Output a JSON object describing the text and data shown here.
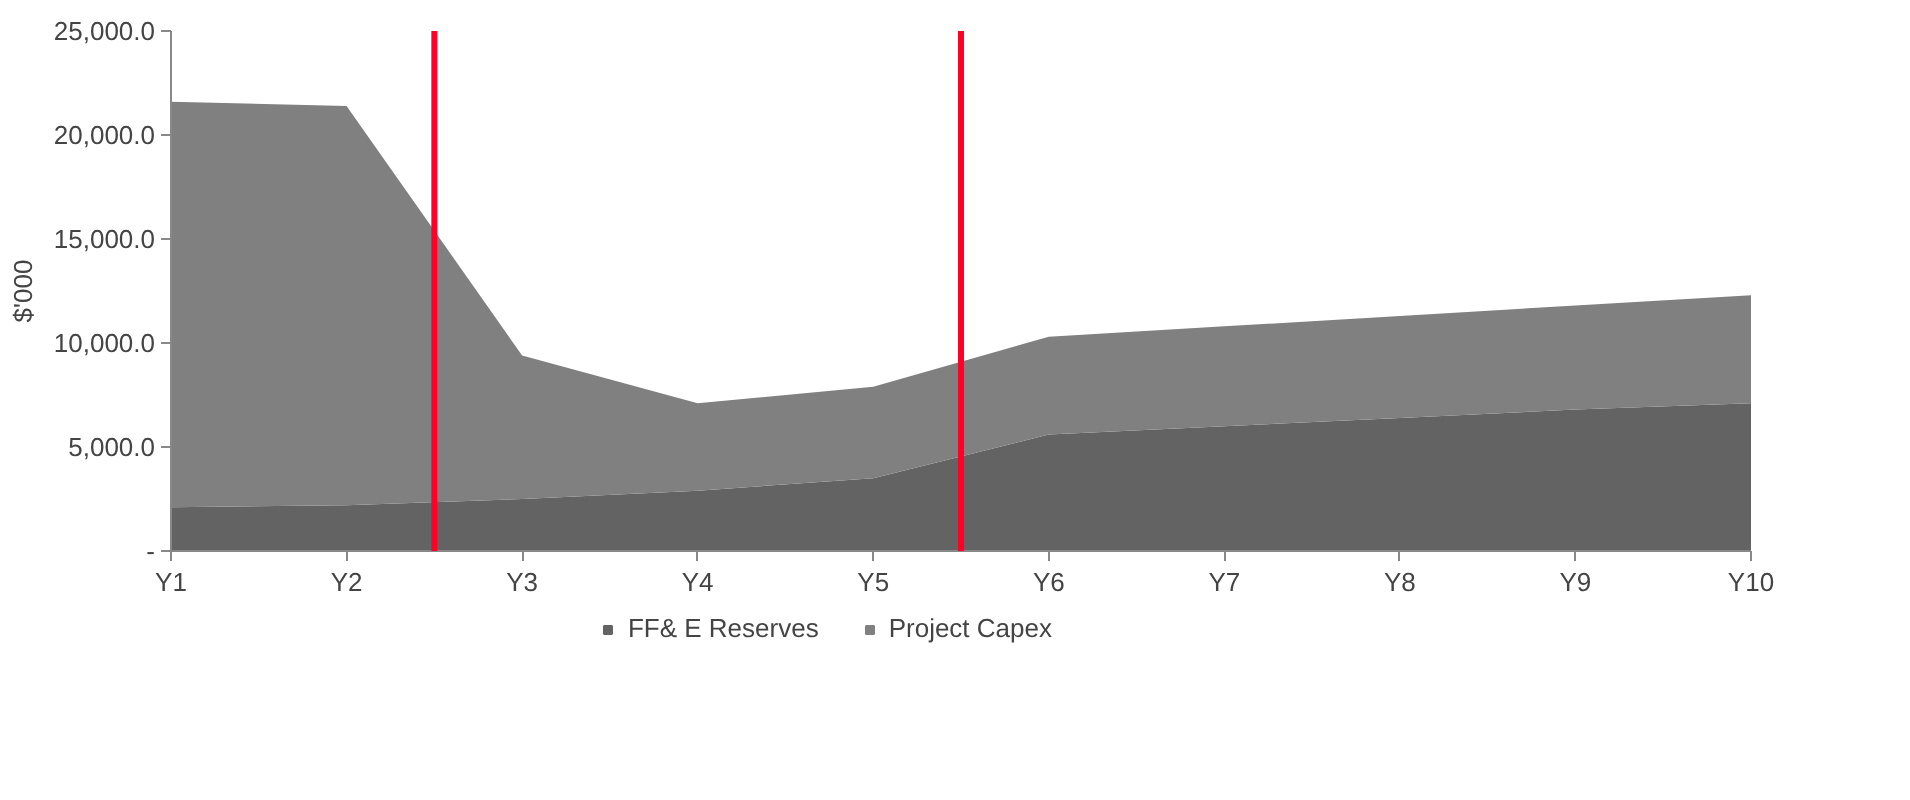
{
  "chart_data": {
    "type": "area",
    "stacked": true,
    "ylabel": "$'000",
    "categories": [
      "Y1",
      "Y2",
      "Y3",
      "Y4",
      "Y5",
      "Y6",
      "Y7",
      "Y8",
      "Y9",
      "Y10"
    ],
    "series": [
      {
        "name": "FF& E Reserves",
        "color": "#636363",
        "values": [
          2100,
          2200,
          2500,
          2900,
          3500,
          5600,
          6000,
          6400,
          6800,
          7100
        ]
      },
      {
        "name": "Project Capex",
        "color": "#808080",
        "values": [
          19500,
          19200,
          6900,
          4200,
          4400,
          4700,
          4800,
          4900,
          5000,
          5200
        ]
      }
    ],
    "ylim": [
      0,
      25000
    ],
    "yticks": [
      {
        "value": 0,
        "label": "-"
      },
      {
        "value": 5000,
        "label": "5,000.0"
      },
      {
        "value": 10000,
        "label": "10,000.0"
      },
      {
        "value": 15000,
        "label": "15,000.0"
      },
      {
        "value": 20000,
        "label": "20,000.0"
      },
      {
        "value": 25000,
        "label": "25,000.0"
      }
    ],
    "grid": false,
    "legend": "bottom"
  }
}
